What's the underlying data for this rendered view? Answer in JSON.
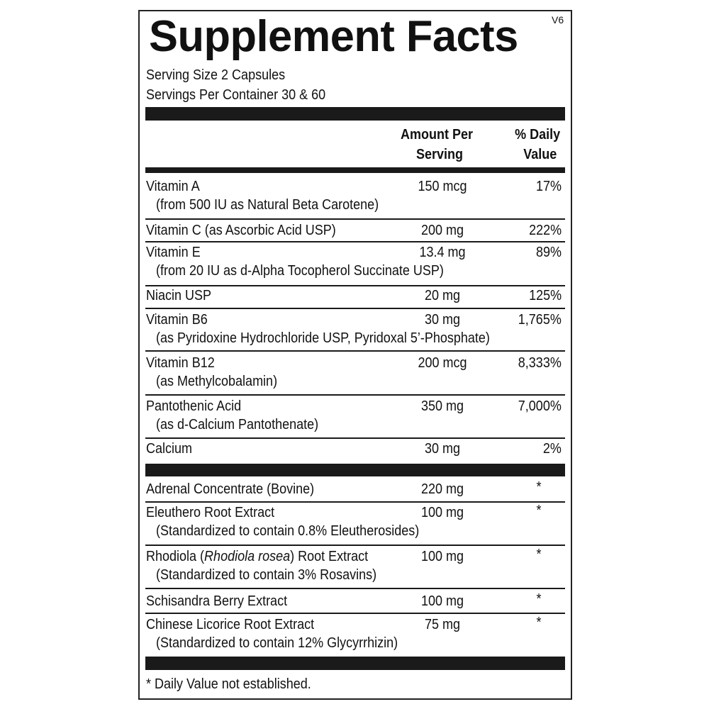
{
  "header": {
    "title": "Supplement Facts",
    "version": "V6",
    "serving_size": "Serving Size 2 Capsules",
    "servings_per_container": "Servings Per Container 30 & 60"
  },
  "columns": {
    "amount": [
      "Amount Per",
      "Serving"
    ],
    "daily_value": [
      "% Daily",
      "Value"
    ]
  },
  "vitamins": [
    {
      "name": [
        "Vitamin A"
      ],
      "detail": "(from 500 IU as Natural Beta Carotene)",
      "amount": "150 mcg",
      "dv": "17%"
    },
    {
      "name": [
        "Vitamin C (as Ascorbic Acid USP)"
      ],
      "amount": "200 mg",
      "dv": "222%"
    },
    {
      "name": [
        "Vitamin E"
      ],
      "detail": "(from 20 IU as d-Alpha Tocopherol Succinate USP)",
      "amount": "13.4 mg",
      "dv": "89%"
    },
    {
      "name": [
        "Niacin USP"
      ],
      "amount": "20 mg",
      "dv": "125%"
    },
    {
      "name": [
        "Vitamin B6"
      ],
      "detail": "(as Pyridoxine Hydrochloride USP, Pyridoxal 5’-Phosphate)",
      "amount": "30 mg",
      "dv": "1,765%"
    },
    {
      "name": [
        "Vitamin B12"
      ],
      "detail": "(as Methylcobalamin)",
      "amount": "200 mcg",
      "dv": "8,333%"
    },
    {
      "name": [
        "Pantothenic Acid"
      ],
      "detail": "(as d-Calcium Pantothenate)",
      "amount": "350 mg",
      "dv": "7,000%"
    },
    {
      "name": [
        "Calcium"
      ],
      "amount": "30 mg",
      "dv": "2%"
    }
  ],
  "extracts": [
    {
      "name": [
        "Adrenal Concentrate  (Bovine)"
      ],
      "amount": "220 mg",
      "dv": "*"
    },
    {
      "name": [
        "Eleuthero Root Extract"
      ],
      "detail": "(Standardized to contain 0.8% Eleutherosides)",
      "amount": "100 mg",
      "dv": "*"
    },
    {
      "name": [
        "Rhodiola (",
        "Rhodiola rosea",
        ") Root Extract"
      ],
      "detail": "(Standardized to contain 3% Rosavins)",
      "amount": "100 mg",
      "dv": "*"
    },
    {
      "name": [
        "Schisandra Berry Extract"
      ],
      "amount": "100 mg",
      "dv": "*"
    },
    {
      "name": [
        "Chinese Licorice Root Extract"
      ],
      "detail": "(Standardized to contain 12% Glycyrrhizin)",
      "amount": "75 mg",
      "dv": "*"
    }
  ],
  "footnote": "* Daily Value not established."
}
